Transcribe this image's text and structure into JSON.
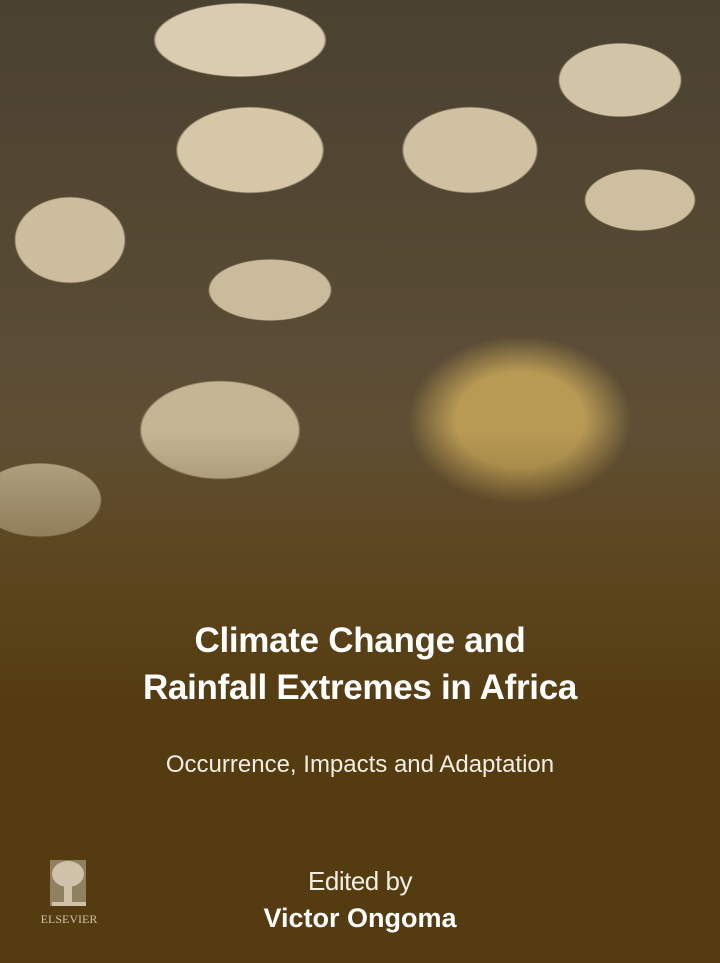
{
  "book": {
    "title_line1": "Climate Change and",
    "title_line2": "Rainfall Extremes in Africa",
    "subtitle": "Occurrence, Impacts and Adaptation",
    "edited_by": "Edited by",
    "editor": "Victor Ongoma"
  },
  "publisher": {
    "logo": "elsevier-tree-logo",
    "name": "ELSEVIER"
  },
  "colors": {
    "background": "#543b10",
    "text": "#ffffff"
  }
}
